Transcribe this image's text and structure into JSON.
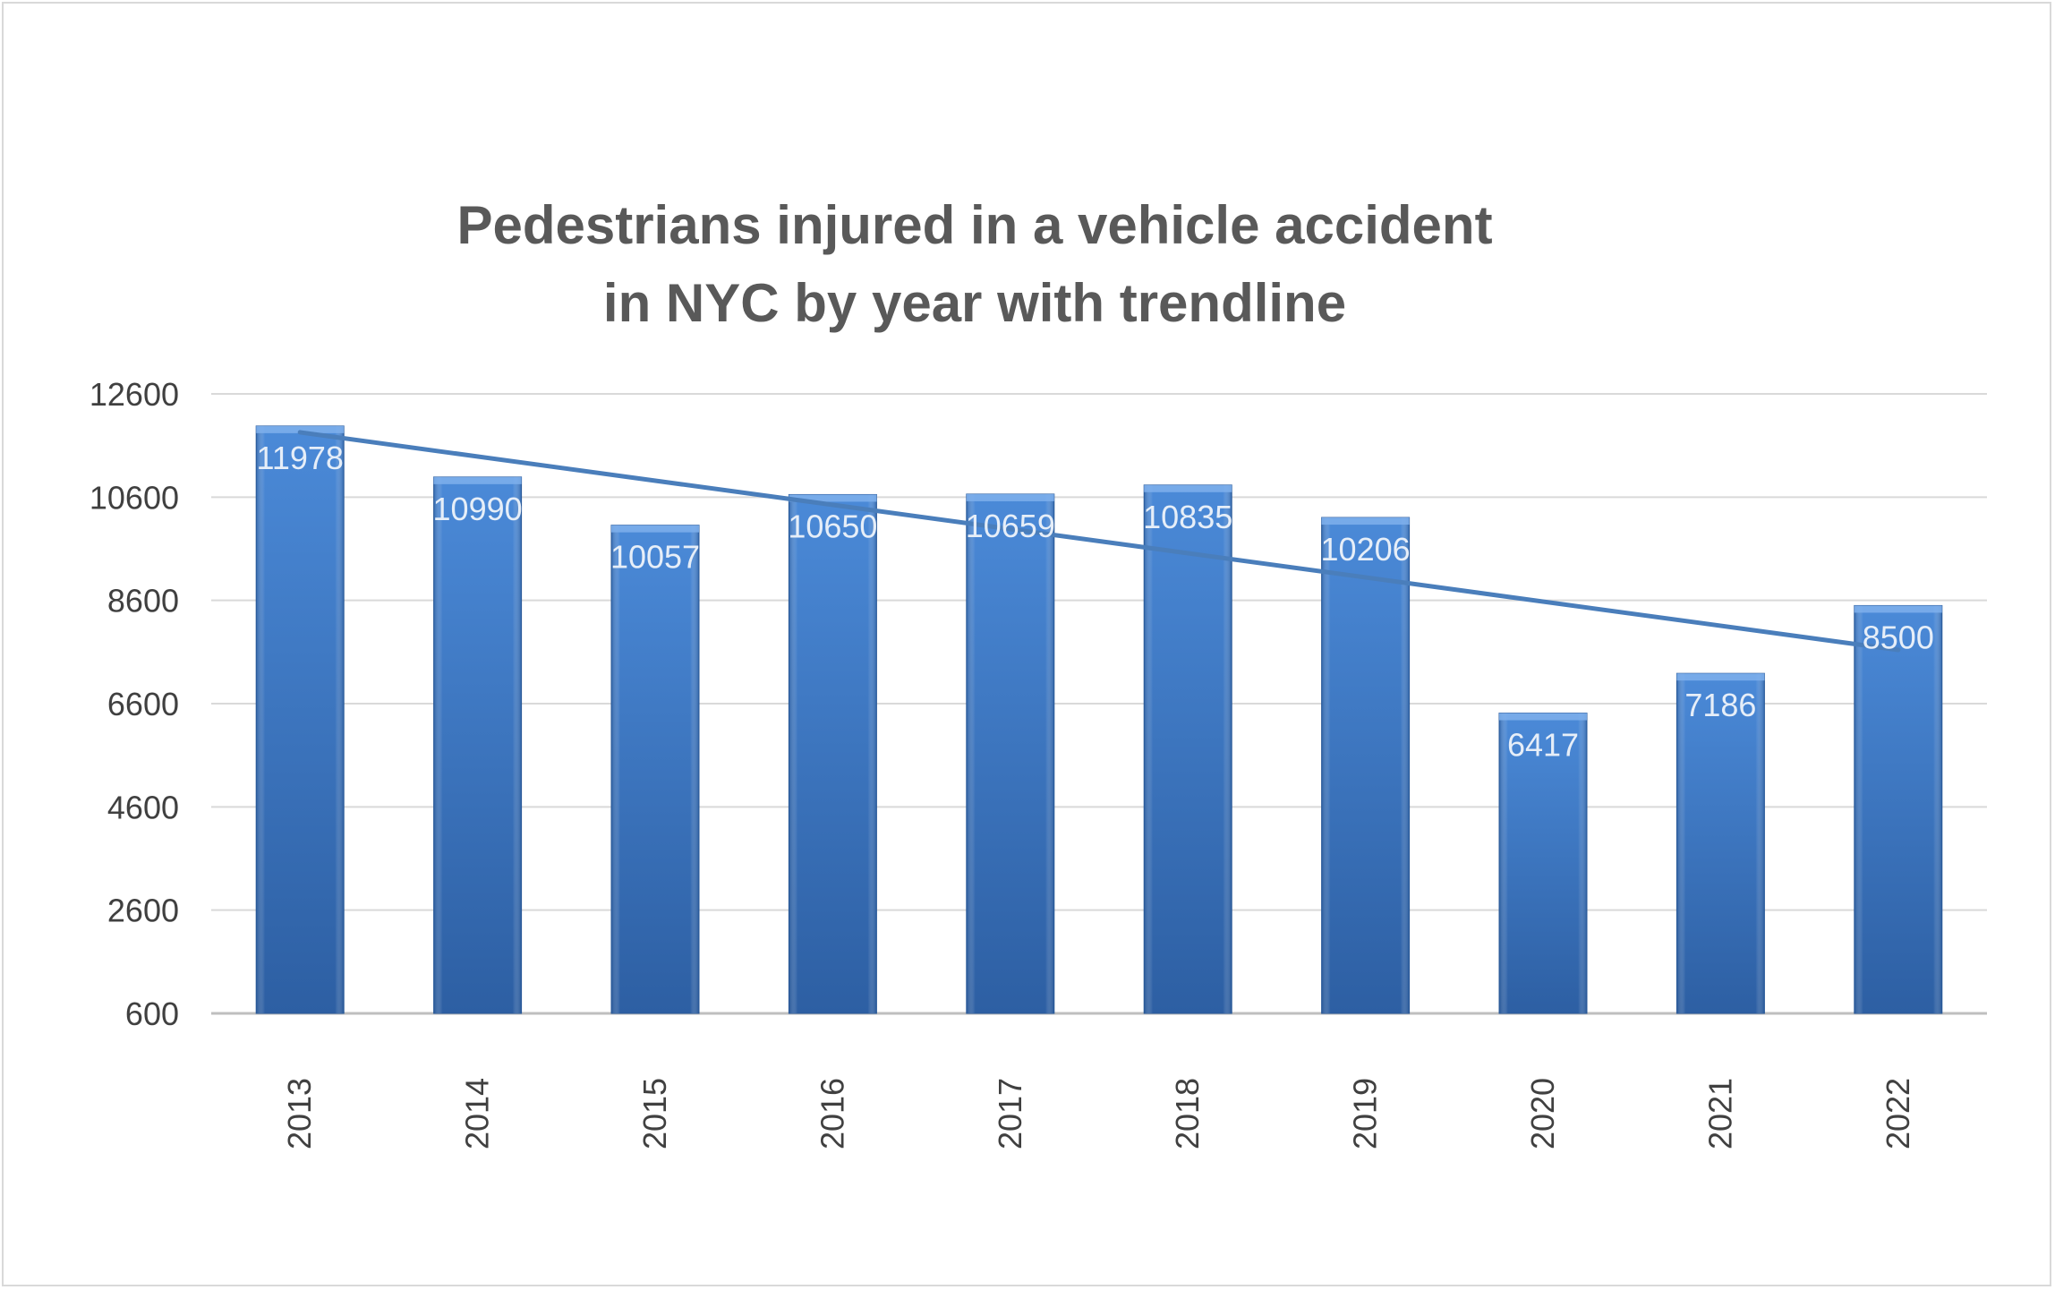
{
  "chart_data": {
    "type": "bar",
    "title_lines": [
      "Pedestrians injured in a vehicle accident",
      "in NYC by year with trendline"
    ],
    "xlabel": "",
    "ylabel": "",
    "categories": [
      "2013",
      "2014",
      "2015",
      "2016",
      "2017",
      "2018",
      "2019",
      "2020",
      "2021",
      "2022"
    ],
    "series": [
      {
        "values": [
          11978,
          10990,
          10057,
          10650,
          10659,
          10835,
          10206,
          6417,
          7186,
          8500
        ],
        "data_labels": [
          "11978",
          "10990",
          "10057",
          "10650",
          "10659",
          "10835",
          "10206",
          "6417",
          "7186",
          "8500"
        ],
        "color": "#3e7acb",
        "trendline": "linear"
      }
    ],
    "ylim": [
      600,
      12600
    ],
    "yticks": [
      600,
      2600,
      4600,
      6600,
      8600,
      10600,
      12600
    ],
    "ytick_labels": [
      "600",
      "2600",
      "4600",
      "6600",
      "8600",
      "10600",
      "12600"
    ],
    "grid": true,
    "legend": "none",
    "colors": {
      "bar": "#3e7acb",
      "trendline": "#4a7ebb",
      "grid": "#d9d9d9"
    }
  }
}
